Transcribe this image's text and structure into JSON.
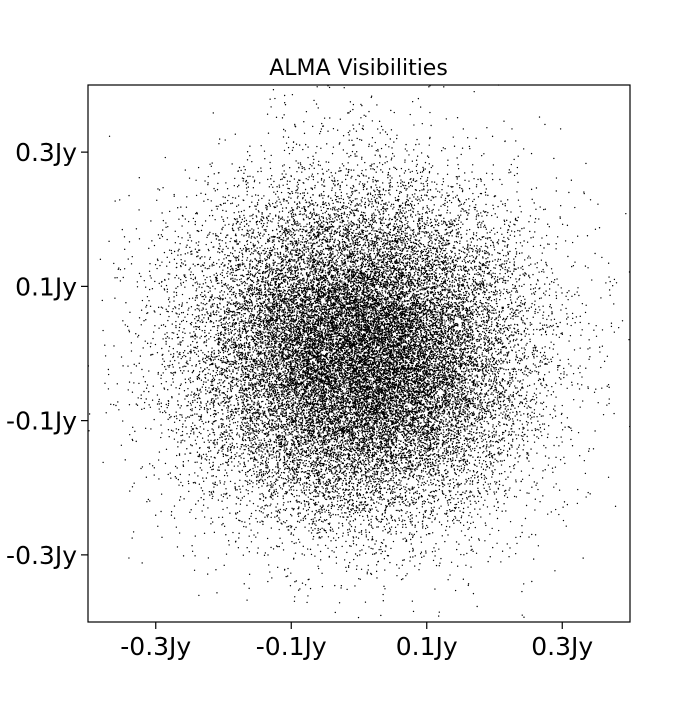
{
  "chart_data": {
    "type": "scatter",
    "title": "ALMA Visibilities",
    "xlabel": "",
    "ylabel": "",
    "xlim": [
      -0.4,
      0.4
    ],
    "ylim": [
      -0.4,
      0.4
    ],
    "x_ticks": [
      {
        "value": -0.3,
        "label": "-0.3Jy"
      },
      {
        "value": -0.1,
        "label": "-0.1Jy"
      },
      {
        "value": 0.1,
        "label": "0.1Jy"
      },
      {
        "value": 0.3,
        "label": "0.3Jy"
      }
    ],
    "y_ticks": [
      {
        "value": 0.3,
        "label": "0.3Jy"
      },
      {
        "value": 0.1,
        "label": "0.1Jy"
      },
      {
        "value": -0.1,
        "label": "-0.1Jy"
      },
      {
        "value": -0.3,
        "label": "-0.3Jy"
      }
    ],
    "grid": false,
    "legend": "none",
    "marker_color": "#000000",
    "distribution": {
      "shape": "2d-gaussian",
      "center": [
        0.0,
        0.0
      ],
      "sigma_x": 0.12,
      "sigma_y": 0.12,
      "approx_points": 30000
    }
  }
}
